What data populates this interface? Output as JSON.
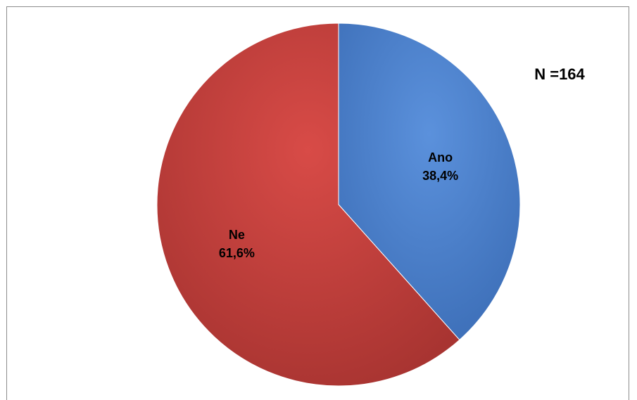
{
  "chart_data": {
    "type": "pie",
    "annotation": "N =164",
    "slices": [
      {
        "label": "Ano",
        "value": 38.4,
        "value_label": "38,4%",
        "color": "#4a7fcc"
      },
      {
        "label": "Ne",
        "value": 61.6,
        "value_label": "61,6%",
        "color": "#c8403d"
      }
    ],
    "start_direction": "12 o'clock",
    "direction": "clockwise"
  }
}
